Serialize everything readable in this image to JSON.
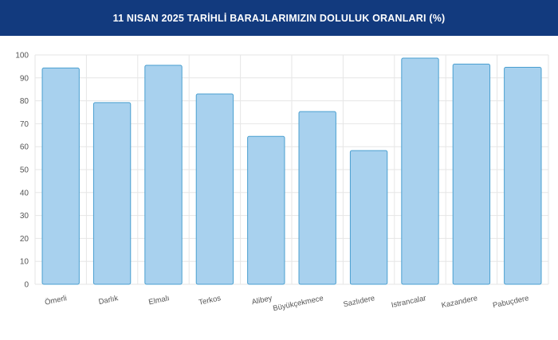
{
  "header": {
    "title": "11 NISAN 2025 TARİHLİ BARAJLARIMIZIN DOLULUK ORANLARI (%)"
  },
  "colors": {
    "header_bg": "#123a7e",
    "bar_fill": "#a8d1ee",
    "bar_stroke": "#4a9fd0",
    "grid": "#e6e6e6"
  },
  "chart_data": {
    "type": "bar",
    "title": "11 NISAN 2025 TARİHLİ BARAJLARIMIZIN DOLULUK ORANLARI (%)",
    "xlabel": "",
    "ylabel": "",
    "ylim": [
      0,
      100
    ],
    "yticks": [
      0,
      10,
      20,
      30,
      40,
      50,
      60,
      70,
      80,
      90,
      100
    ],
    "grid": true,
    "legend": "none",
    "categories": [
      "Ömerli",
      "Darlık",
      "Elmalı",
      "Terkos",
      "Alibey",
      "Büyükçekmece",
      "Sazlıdere",
      "Istrancalar",
      "Kazandere",
      "Pabuçdere"
    ],
    "values": [
      94.3,
      79.2,
      95.5,
      83.0,
      64.5,
      75.3,
      58.3,
      98.6,
      96.0,
      94.6
    ]
  }
}
